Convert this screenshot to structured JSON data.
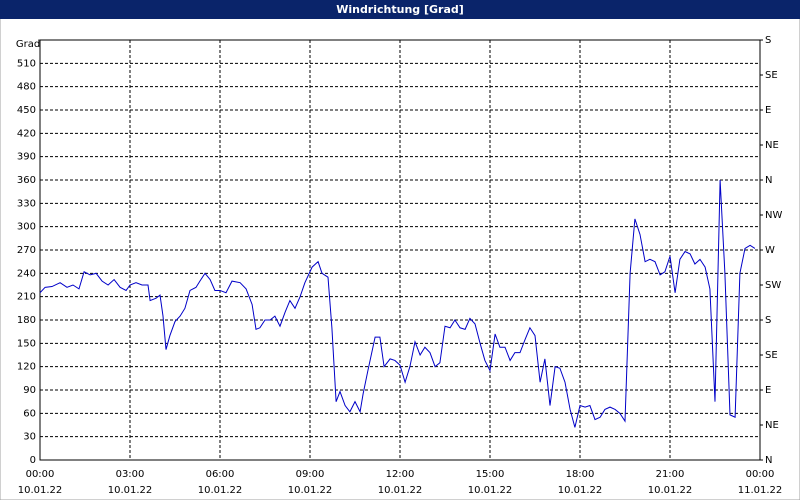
{
  "chart_data": {
    "type": "line",
    "title": "Windrichtung [Grad]",
    "y_label": "Grad",
    "xlim": [
      0,
      24
    ],
    "xticks": [
      {
        "value": 0,
        "label": "00:00",
        "date": "10.01.22"
      },
      {
        "value": 3,
        "label": "03:00",
        "date": "10.01.22"
      },
      {
        "value": 6,
        "label": "06:00",
        "date": "10.01.22"
      },
      {
        "value": 9,
        "label": "09:00",
        "date": "10.01.22"
      },
      {
        "value": 12,
        "label": "12:00",
        "date": "10.01.22"
      },
      {
        "value": 15,
        "label": "15:00",
        "date": "10.01.22"
      },
      {
        "value": 18,
        "label": "18:00",
        "date": "10.01.22"
      },
      {
        "value": 21,
        "label": "21:00",
        "date": "10.01.22"
      },
      {
        "value": 24,
        "label": "00:00",
        "date": "11.01.22"
      }
    ],
    "ylim": [
      0,
      540
    ],
    "yticks": [
      0,
      30,
      60,
      90,
      120,
      150,
      180,
      210,
      240,
      270,
      300,
      330,
      360,
      390,
      420,
      450,
      480,
      510
    ],
    "y2lim": [
      0,
      540
    ],
    "y2ticks": [
      {
        "value": 0,
        "label": "N"
      },
      {
        "value": 45,
        "label": "NE"
      },
      {
        "value": 90,
        "label": "E"
      },
      {
        "value": 135,
        "label": "SE"
      },
      {
        "value": 180,
        "label": "S"
      },
      {
        "value": 225,
        "label": "SW"
      },
      {
        "value": 270,
        "label": "W"
      },
      {
        "value": 315,
        "label": "NW"
      },
      {
        "value": 360,
        "label": "N"
      },
      {
        "value": 405,
        "label": "NE"
      },
      {
        "value": 450,
        "label": "E"
      },
      {
        "value": 495,
        "label": "SE"
      },
      {
        "value": 540,
        "label": "S"
      }
    ],
    "grid": true,
    "series": [
      {
        "color": "#0000c8",
        "x": [
          0,
          0.17,
          0.4,
          0.67,
          0.9,
          1.1,
          1.3,
          1.47,
          1.67,
          1.87,
          2.07,
          2.27,
          2.47,
          2.67,
          2.87,
          3,
          3.2,
          3.4,
          3.6,
          3.67,
          3.87,
          4,
          4.1,
          4.2,
          4.33,
          4.5,
          4.67,
          4.83,
          5,
          5.2,
          5.33,
          5.5,
          5.67,
          5.83,
          6,
          6.2,
          6.4,
          6.67,
          6.87,
          7.07,
          7.2,
          7.33,
          7.5,
          7.67,
          7.83,
          8,
          8.17,
          8.33,
          8.5,
          8.67,
          8.83,
          9.07,
          9.27,
          9.4,
          9.6,
          9.73,
          9.87,
          10,
          10.17,
          10.33,
          10.5,
          10.67,
          10.77,
          10.93,
          11.17,
          11.33,
          11.47,
          11.67,
          11.83,
          12,
          12.17,
          12.33,
          12.5,
          12.67,
          12.83,
          13,
          13.17,
          13.33,
          13.5,
          13.67,
          13.83,
          14,
          14.17,
          14.33,
          14.5,
          14.67,
          14.83,
          15,
          15.17,
          15.33,
          15.5,
          15.67,
          15.83,
          16,
          16.17,
          16.33,
          16.5,
          16.67,
          16.83,
          17,
          17.17,
          17.33,
          17.5,
          17.67,
          17.83,
          18,
          18.17,
          18.33,
          18.5,
          18.67,
          18.83,
          19,
          19.17,
          19.33,
          19.5,
          19.67,
          19.83,
          20,
          20.17,
          20.33,
          20.5,
          20.67,
          20.83,
          21,
          21.17,
          21.33,
          21.5,
          21.67,
          21.83,
          22,
          22.17,
          22.33,
          22.5,
          22.67,
          22.83,
          23,
          23.17,
          23.33,
          23.5,
          23.67,
          23.83
        ],
        "values": [
          215,
          222,
          223,
          228,
          222,
          225,
          220,
          242,
          238,
          240,
          230,
          225,
          232,
          222,
          218,
          225,
          228,
          225,
          225,
          205,
          208,
          212,
          185,
          142,
          160,
          178,
          185,
          195,
          218,
          222,
          230,
          240,
          232,
          218,
          218,
          215,
          230,
          228,
          220,
          200,
          168,
          170,
          180,
          180,
          185,
          172,
          190,
          205,
          195,
          210,
          228,
          248,
          255,
          240,
          235,
          170,
          75,
          88,
          70,
          62,
          75,
          62,
          85,
          115,
          158,
          158,
          120,
          130,
          128,
          122,
          100,
          120,
          152,
          135,
          145,
          138,
          120,
          125,
          172,
          170,
          180,
          170,
          168,
          182,
          175,
          150,
          128,
          115,
          162,
          145,
          145,
          128,
          138,
          138,
          155,
          170,
          160,
          100,
          130,
          70,
          120,
          118,
          100,
          65,
          42,
          70,
          68,
          70,
          52,
          55,
          65,
          68,
          65,
          60,
          50,
          240,
          310,
          290,
          255,
          258,
          255,
          238,
          242,
          262,
          215,
          258,
          268,
          265,
          252,
          258,
          248,
          220,
          75,
          360,
          240,
          58,
          55,
          240,
          272,
          276,
          272
        ]
      }
    ]
  }
}
